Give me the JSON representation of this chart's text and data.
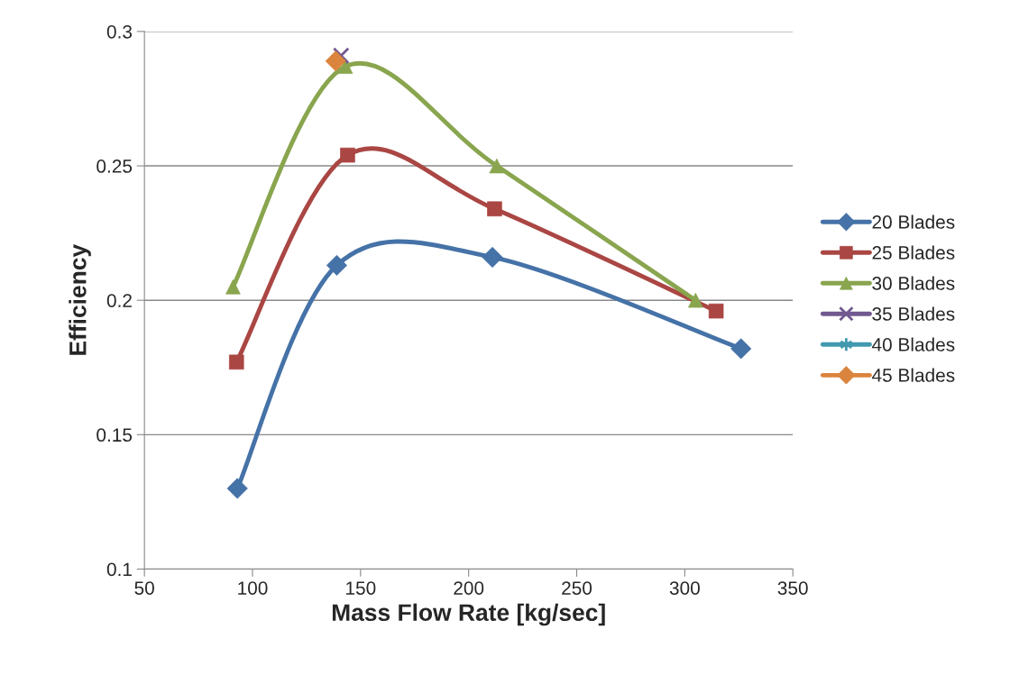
{
  "chart_data": {
    "type": "line",
    "xlabel": "Mass Flow Rate [kg/sec]",
    "ylabel": "Efficiency",
    "xlim": [
      50,
      350
    ],
    "xticks": [
      50,
      100,
      150,
      200,
      250,
      300,
      350
    ],
    "ylim": [
      0.1,
      0.3
    ],
    "yticks": [
      0.1,
      0.15,
      0.2,
      0.25,
      0.3
    ],
    "grid": "y",
    "legend": "right",
    "line_style": "solid",
    "series": [
      {
        "name": "20 Blades",
        "color": "#4572a7",
        "marker": "diamond",
        "x": [
          93,
          139,
          211,
          326
        ],
        "values": [
          0.13,
          0.213,
          0.216,
          0.182
        ]
      },
      {
        "name": "25 Blades",
        "color": "#aa4643",
        "marker": "square",
        "x": [
          92.6,
          144,
          212,
          314.5
        ],
        "values": [
          0.177,
          0.254,
          0.234,
          0.196
        ]
      },
      {
        "name": "30 Blades",
        "color": "#89a54e",
        "marker": "triangle",
        "x": [
          91,
          143,
          213,
          305
        ],
        "values": [
          0.205,
          0.287,
          0.25,
          0.2
        ]
      },
      {
        "name": "35 Blades",
        "color": "#71588f",
        "marker": "cross",
        "x": [
          141
        ],
        "values": [
          0.291
        ]
      },
      {
        "name": "40 Blades",
        "color": "#4198af",
        "marker": "star"
      },
      {
        "name": "45 Blades",
        "color": "#db843d",
        "marker": "diamond",
        "x": [
          138.5
        ],
        "values": [
          0.289
        ]
      }
    ]
  }
}
